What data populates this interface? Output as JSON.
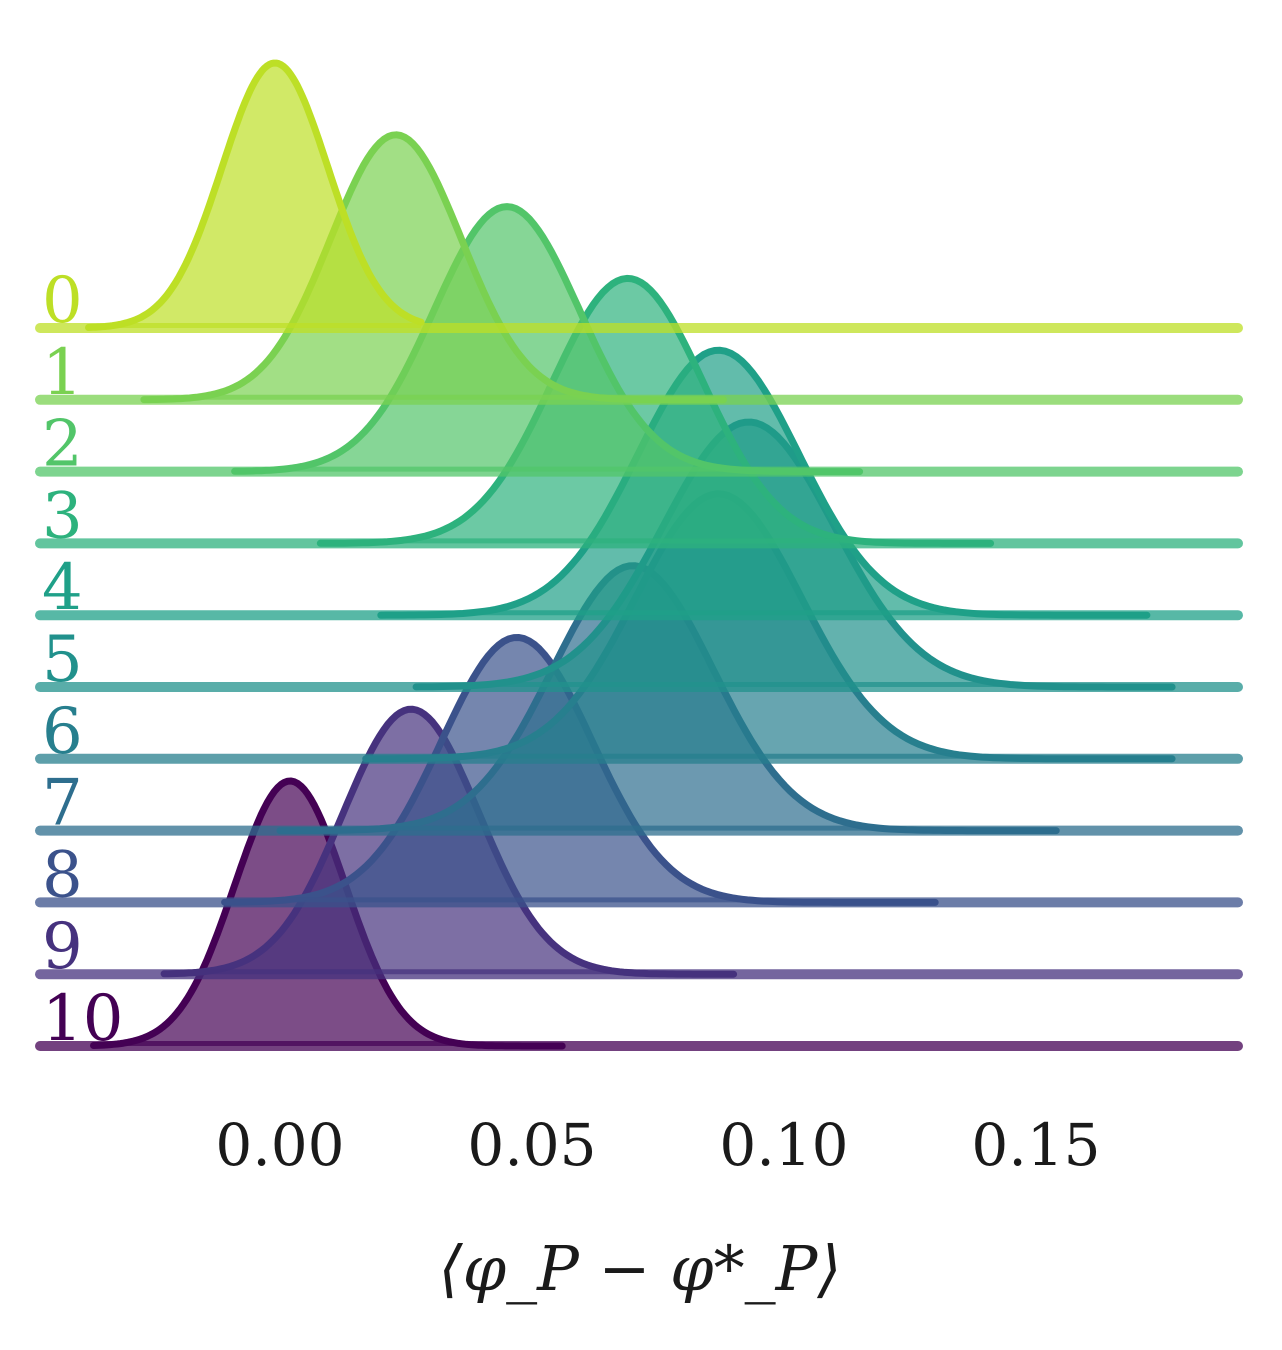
{
  "chart_data": {
    "type": "area",
    "subtype": "ridgeline",
    "xlabel": "⟨φ_P − φ*_P⟩",
    "xlim": [
      -0.05,
      0.19
    ],
    "xticks": [
      "0.00",
      "0.05",
      "0.10",
      "0.15"
    ],
    "grid": false,
    "legend": "none",
    "series": [
      {
        "name": "0",
        "color": "#bddf26",
        "mean": -0.001,
        "sd": 0.0105,
        "range": [
          -0.038,
          0.028
        ]
      },
      {
        "name": "1",
        "color": "#7ad151",
        "mean": 0.023,
        "sd": 0.013,
        "range": [
          -0.027,
          0.088
        ]
      },
      {
        "name": "2",
        "color": "#52c569",
        "mean": 0.045,
        "sd": 0.0145,
        "range": [
          -0.009,
          0.115
        ]
      },
      {
        "name": "3",
        "color": "#2db27d",
        "mean": 0.069,
        "sd": 0.015,
        "range": [
          0.008,
          0.141
        ]
      },
      {
        "name": "4",
        "color": "#1fa088",
        "mean": 0.087,
        "sd": 0.016,
        "range": [
          0.02,
          0.172
        ]
      },
      {
        "name": "5",
        "color": "#21918c",
        "mean": 0.093,
        "sd": 0.017,
        "range": [
          0.027,
          0.177
        ]
      },
      {
        "name": "6",
        "color": "#277f8e",
        "mean": 0.087,
        "sd": 0.0165,
        "range": [
          0.017,
          0.177
        ]
      },
      {
        "name": "7",
        "color": "#2e6e8e",
        "mean": 0.07,
        "sd": 0.016,
        "range": [
          0.0,
          0.154
        ]
      },
      {
        "name": "8",
        "color": "#3b528b",
        "mean": 0.047,
        "sd": 0.015,
        "range": [
          -0.011,
          0.13
        ]
      },
      {
        "name": "9",
        "color": "#46327e",
        "mean": 0.026,
        "sd": 0.0135,
        "range": [
          -0.023,
          0.09
        ]
      },
      {
        "name": "10",
        "color": "#440154",
        "mean": 0.002,
        "sd": 0.011,
        "range": [
          -0.037,
          0.056
        ]
      }
    ]
  }
}
